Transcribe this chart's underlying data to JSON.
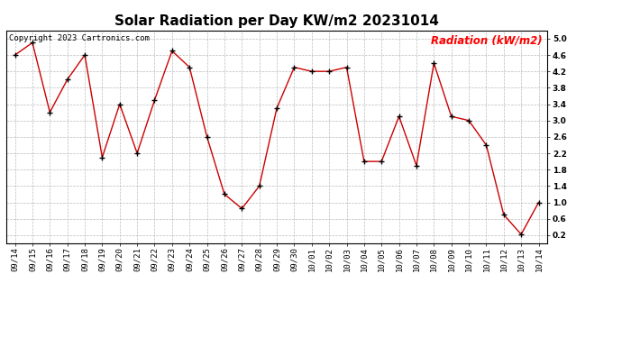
{
  "title": "Solar Radiation per Day KW/m2 20231014",
  "copyright_text": "Copyright 2023 Cartronics.com",
  "legend_label": "Radiation (kW/m2)",
  "dates": [
    "09/14",
    "09/15",
    "09/16",
    "09/17",
    "09/18",
    "09/19",
    "09/20",
    "09/21",
    "09/22",
    "09/23",
    "09/24",
    "09/25",
    "09/26",
    "09/27",
    "09/28",
    "09/29",
    "09/30",
    "10/01",
    "10/02",
    "10/03",
    "10/04",
    "10/05",
    "10/06",
    "10/07",
    "10/08",
    "10/09",
    "10/10",
    "10/11",
    "10/12",
    "10/13",
    "10/14"
  ],
  "values": [
    4.6,
    4.9,
    3.2,
    4.0,
    4.6,
    2.1,
    3.4,
    2.2,
    3.5,
    4.7,
    4.3,
    2.6,
    1.2,
    0.85,
    1.4,
    3.3,
    4.3,
    4.2,
    4.2,
    4.3,
    2.0,
    2.0,
    3.1,
    1.9,
    4.4,
    3.1,
    3.0,
    2.4,
    0.7,
    0.22,
    1.0
  ],
  "line_color": "#cc0000",
  "marker_color": "#000000",
  "background_color": "#ffffff",
  "grid_color": "#bbbbbb",
  "title_color": "#000000",
  "copyright_color": "#000000",
  "legend_color": "#ff0000",
  "ylim": [
    0.0,
    5.2
  ],
  "yticks": [
    0.2,
    0.6,
    1.0,
    1.4,
    1.8,
    2.2,
    2.6,
    3.0,
    3.4,
    3.8,
    4.2,
    4.6,
    5.0
  ],
  "title_fontsize": 11,
  "copyright_fontsize": 6.5,
  "legend_fontsize": 8.5,
  "tick_fontsize": 6.5
}
